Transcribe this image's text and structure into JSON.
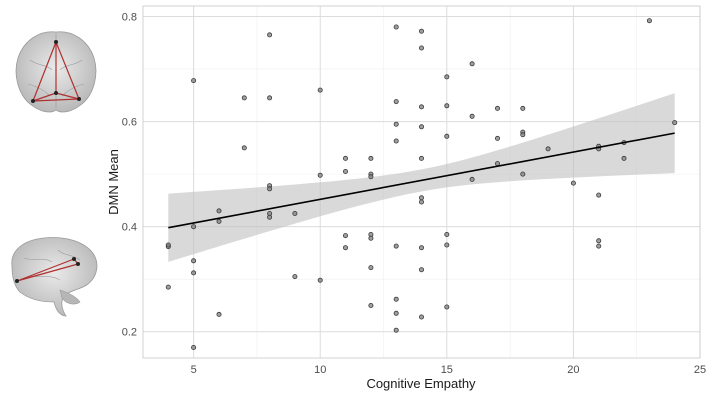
{
  "chart_data": {
    "type": "scatter",
    "title": "",
    "xlabel": "Cognitive Empathy",
    "ylabel": "DMN Mean",
    "xlim": [
      3,
      25
    ],
    "ylim": [
      0.15,
      0.82
    ],
    "x_ticks": [
      5,
      10,
      15,
      20,
      25
    ],
    "y_ticks": [
      0.2,
      0.4,
      0.6,
      0.8
    ],
    "grid": true,
    "legend": "none",
    "points": [
      {
        "x": 4,
        "y": 0.285
      },
      {
        "x": 4,
        "y": 0.362
      },
      {
        "x": 4,
        "y": 0.365
      },
      {
        "x": 5,
        "y": 0.678
      },
      {
        "x": 5,
        "y": 0.4
      },
      {
        "x": 5,
        "y": 0.335
      },
      {
        "x": 5,
        "y": 0.312
      },
      {
        "x": 5,
        "y": 0.17
      },
      {
        "x": 6,
        "y": 0.43
      },
      {
        "x": 6,
        "y": 0.41
      },
      {
        "x": 6,
        "y": 0.233
      },
      {
        "x": 7,
        "y": 0.645
      },
      {
        "x": 7,
        "y": 0.55
      },
      {
        "x": 8,
        "y": 0.765
      },
      {
        "x": 8,
        "y": 0.645
      },
      {
        "x": 8,
        "y": 0.478
      },
      {
        "x": 8,
        "y": 0.472
      },
      {
        "x": 8,
        "y": 0.425
      },
      {
        "x": 8,
        "y": 0.418
      },
      {
        "x": 9,
        "y": 0.425
      },
      {
        "x": 9,
        "y": 0.305
      },
      {
        "x": 10,
        "y": 0.66
      },
      {
        "x": 10,
        "y": 0.498
      },
      {
        "x": 10,
        "y": 0.298
      },
      {
        "x": 11,
        "y": 0.53
      },
      {
        "x": 11,
        "y": 0.505
      },
      {
        "x": 11,
        "y": 0.383
      },
      {
        "x": 11,
        "y": 0.36
      },
      {
        "x": 12,
        "y": 0.53
      },
      {
        "x": 12,
        "y": 0.5
      },
      {
        "x": 12,
        "y": 0.495
      },
      {
        "x": 12,
        "y": 0.385
      },
      {
        "x": 12,
        "y": 0.378
      },
      {
        "x": 12,
        "y": 0.322
      },
      {
        "x": 12,
        "y": 0.25
      },
      {
        "x": 13,
        "y": 0.78
      },
      {
        "x": 13,
        "y": 0.638
      },
      {
        "x": 13,
        "y": 0.595
      },
      {
        "x": 13,
        "y": 0.563
      },
      {
        "x": 13,
        "y": 0.363
      },
      {
        "x": 13,
        "y": 0.262
      },
      {
        "x": 13,
        "y": 0.235
      },
      {
        "x": 13,
        "y": 0.203
      },
      {
        "x": 14,
        "y": 0.772
      },
      {
        "x": 14,
        "y": 0.74
      },
      {
        "x": 14,
        "y": 0.628
      },
      {
        "x": 14,
        "y": 0.59
      },
      {
        "x": 14,
        "y": 0.53
      },
      {
        "x": 14,
        "y": 0.455
      },
      {
        "x": 14,
        "y": 0.447
      },
      {
        "x": 14,
        "y": 0.36
      },
      {
        "x": 14,
        "y": 0.318
      },
      {
        "x": 14,
        "y": 0.228
      },
      {
        "x": 15,
        "y": 0.685
      },
      {
        "x": 15,
        "y": 0.63
      },
      {
        "x": 15,
        "y": 0.572
      },
      {
        "x": 15,
        "y": 0.385
      },
      {
        "x": 15,
        "y": 0.365
      },
      {
        "x": 15,
        "y": 0.247
      },
      {
        "x": 16,
        "y": 0.71
      },
      {
        "x": 16,
        "y": 0.61
      },
      {
        "x": 16,
        "y": 0.49
      },
      {
        "x": 17,
        "y": 0.625
      },
      {
        "x": 17,
        "y": 0.568
      },
      {
        "x": 17,
        "y": 0.52
      },
      {
        "x": 18,
        "y": 0.625
      },
      {
        "x": 18,
        "y": 0.58
      },
      {
        "x": 18,
        "y": 0.575
      },
      {
        "x": 18,
        "y": 0.5
      },
      {
        "x": 19,
        "y": 0.548
      },
      {
        "x": 20,
        "y": 0.483
      },
      {
        "x": 21,
        "y": 0.553
      },
      {
        "x": 21,
        "y": 0.548
      },
      {
        "x": 21,
        "y": 0.46
      },
      {
        "x": 21,
        "y": 0.373
      },
      {
        "x": 21,
        "y": 0.363
      },
      {
        "x": 22,
        "y": 0.56
      },
      {
        "x": 22,
        "y": 0.53
      },
      {
        "x": 23,
        "y": 0.792
      },
      {
        "x": 24,
        "y": 0.598
      }
    ],
    "fit": {
      "x": [
        4,
        24
      ],
      "y": [
        0.398,
        0.578
      ],
      "ci_lower": [
        0.333,
        0.502
      ],
      "ci_upper": [
        0.463,
        0.654
      ],
      "ci_at_mean": [
        0.473,
        0.515
      ]
    },
    "colors": {
      "point_fill": "#7f7f7f",
      "point_stroke": "#3a3a3a",
      "fit_line": "#000000",
      "ci_band": "#bfbfbf",
      "brain": "#c8c8c8",
      "network_edge": "#b03030",
      "network_node": "#222222"
    },
    "insets": [
      "brain-axial-view",
      "brain-sagittal-view"
    ]
  }
}
